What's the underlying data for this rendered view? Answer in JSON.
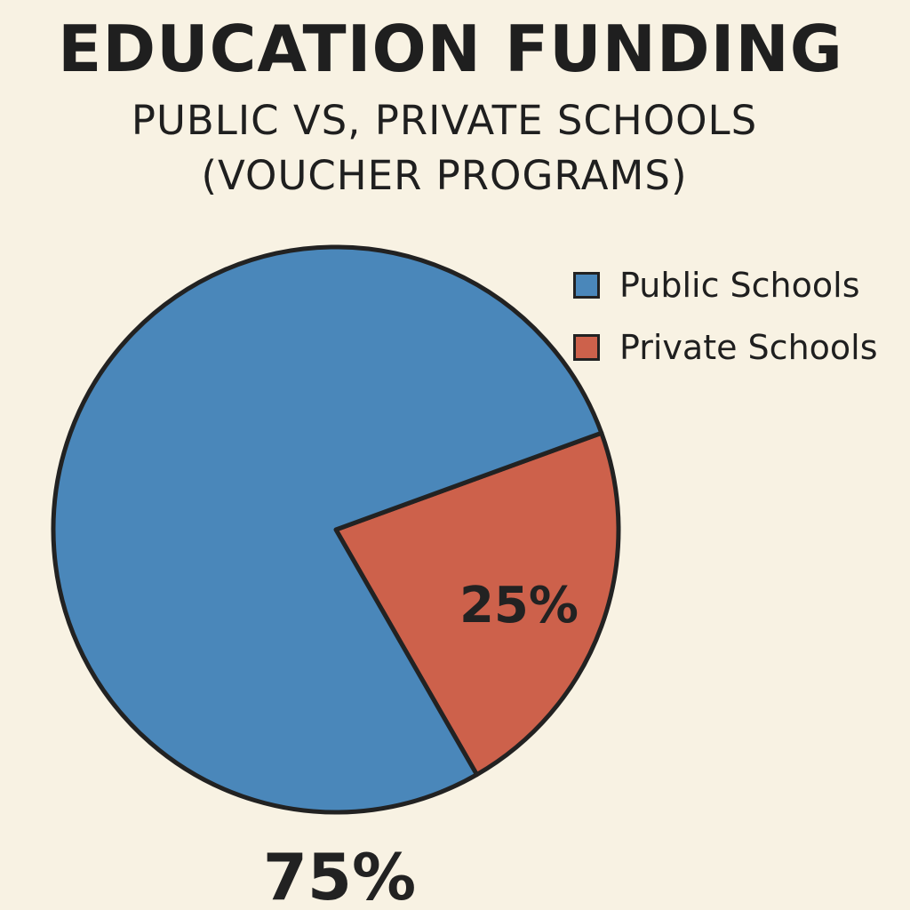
{
  "chart_data": {
    "type": "pie",
    "title": "EDUCATION FUNDING",
    "subtitle": [
      "PUBLIC VS, PRIVATE SCHOOLS",
      "(VOUCHER PROGRAMS)"
    ],
    "slices": [
      {
        "name": "Public Schools",
        "value": 75,
        "label": "75%",
        "color": "#4a87ba"
      },
      {
        "name": "Private Schools",
        "value": 25,
        "label": "25%",
        "color": "#cd614b"
      }
    ],
    "legend_position": "top-right"
  }
}
